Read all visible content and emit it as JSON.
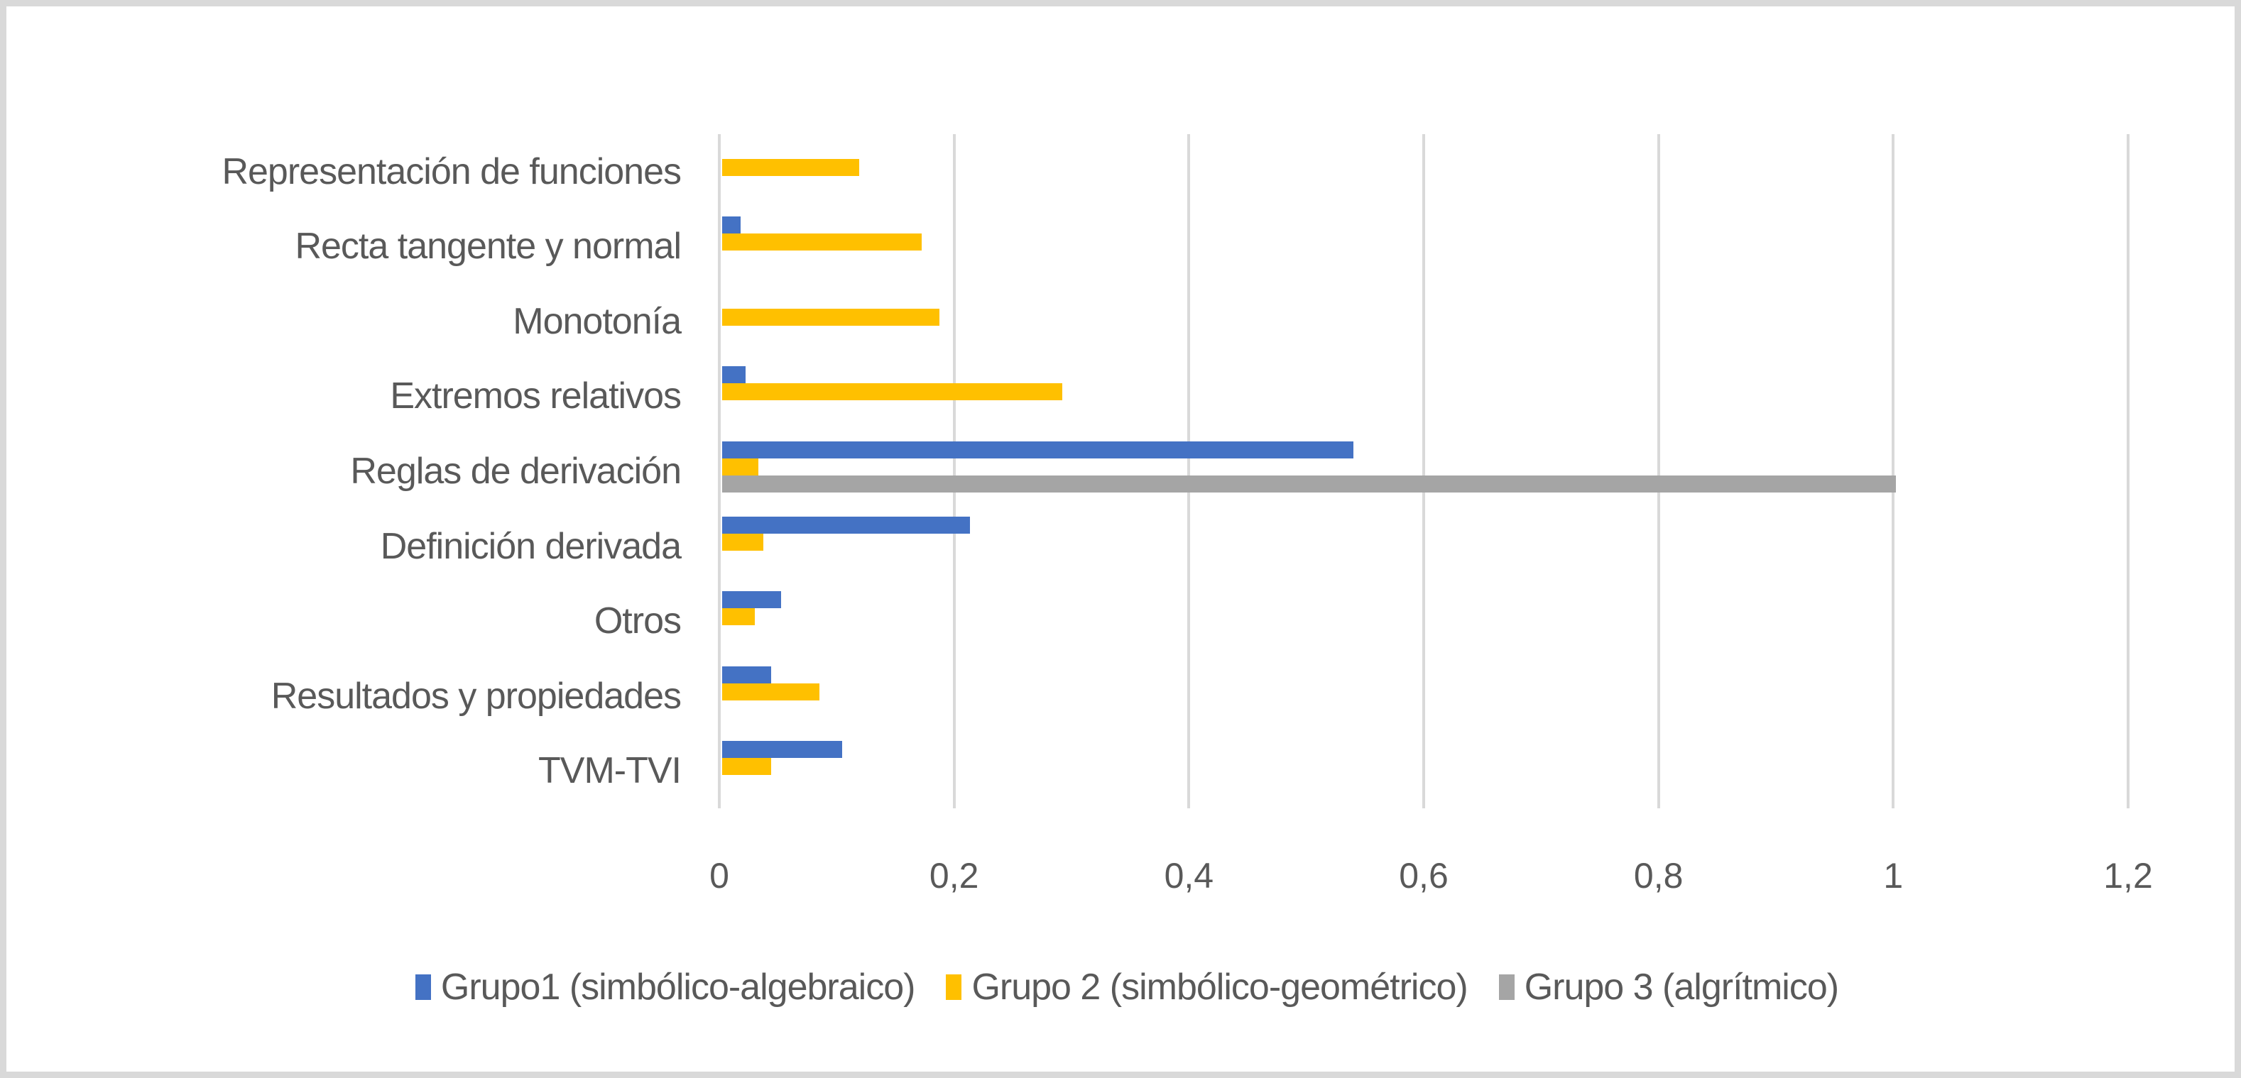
{
  "chart_data": {
    "type": "bar",
    "orientation": "horizontal",
    "title": "",
    "xlabel": "",
    "ylabel": "",
    "xlim": [
      0,
      1.2
    ],
    "x_ticks": [
      "0",
      "0,2",
      "0,4",
      "0,6",
      "0,8",
      "1",
      "1,2"
    ],
    "grid": true,
    "legend_position": "bottom",
    "categories": [
      "Representación de funciones",
      "Recta tangente y normal",
      "Monotonía",
      "Extremos relativos",
      "Reglas de derivación",
      "Definición derivada",
      "Otros",
      "Resultados y propiedades",
      "TVM-TVI"
    ],
    "series": [
      {
        "name": "Grupo1 (simbólico-algebraico)",
        "color": "#4472c4",
        "values": [
          0,
          0.016,
          0,
          0.02,
          0.538,
          0.211,
          0.05,
          0.042,
          0.102
        ]
      },
      {
        "name": "Grupo 2 (simbólico-geométrico)",
        "color": "#ffc000",
        "values": [
          0.117,
          0.17,
          0.185,
          0.29,
          0.031,
          0.035,
          0.028,
          0.083,
          0.042
        ]
      },
      {
        "name": "Grupo 3 (algrítmico)",
        "color": "#a5a5a5",
        "values": [
          0,
          0,
          0,
          0,
          1.0,
          0,
          0,
          0,
          0
        ]
      }
    ]
  },
  "legend": [
    {
      "label": "Grupo1 (simbólico-algebraico)",
      "color": "#4472c4"
    },
    {
      "label": "Grupo 2 (simbólico-geométrico)",
      "color": "#ffc000"
    },
    {
      "label": "Grupo 3 (algrítmico)",
      "color": "#a5a5a5"
    }
  ]
}
